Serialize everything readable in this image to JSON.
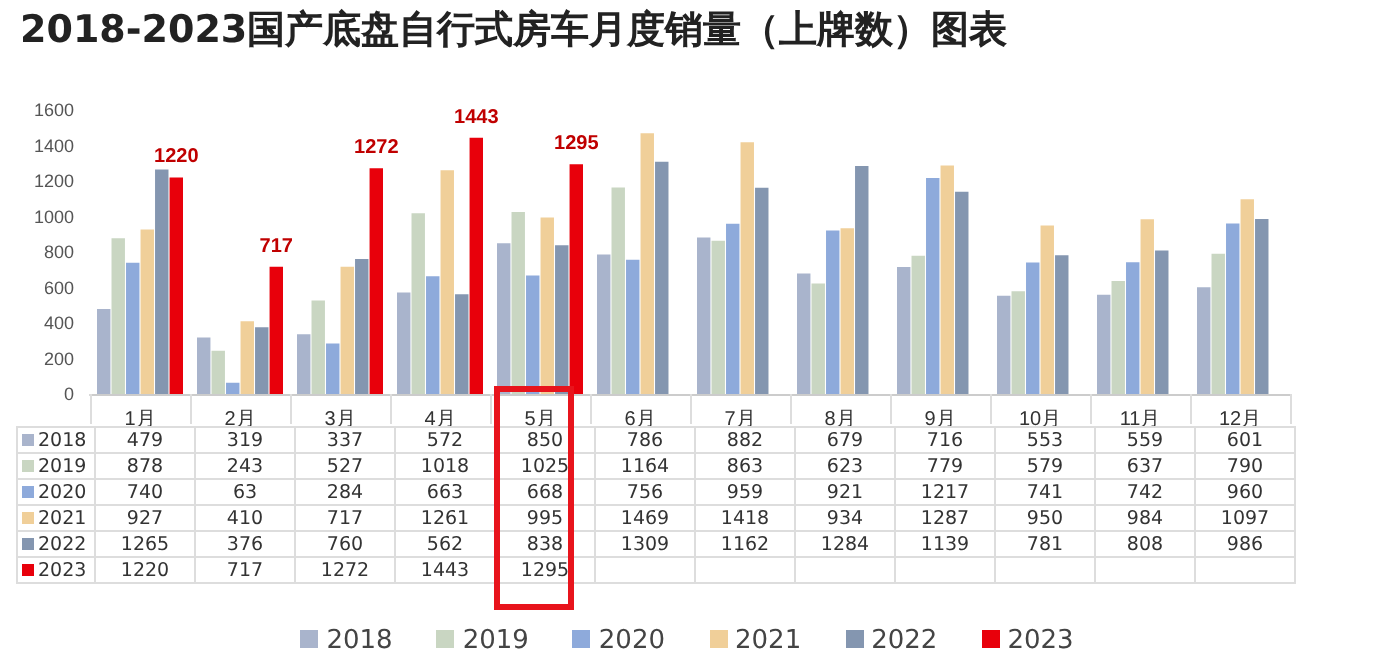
{
  "chart_data": {
    "type": "bar",
    "title": "2018-2023国产底盘自行式房车月度销量（上牌数）图表",
    "categories": [
      "1月",
      "2月",
      "3月",
      "4月",
      "5月",
      "6月",
      "7月",
      "8月",
      "9月",
      "10月",
      "11月",
      "12月"
    ],
    "ylim": [
      0,
      1600
    ],
    "yticks": [
      0,
      200,
      400,
      600,
      800,
      1000,
      1200,
      1400,
      1600
    ],
    "legend": "bottom",
    "data_labels": true,
    "series": [
      {
        "name": "2018",
        "color": "#a9b4cc",
        "values": [
          479,
          319,
          337,
          572,
          850,
          786,
          882,
          679,
          716,
          553,
          559,
          601
        ]
      },
      {
        "name": "2019",
        "color": "#c9d6c2",
        "values": [
          878,
          243,
          527,
          1018,
          1025,
          1164,
          863,
          623,
          779,
          579,
          637,
          790
        ]
      },
      {
        "name": "2020",
        "color": "#8eaadb",
        "values": [
          740,
          63,
          284,
          663,
          668,
          756,
          959,
          921,
          1217,
          741,
          742,
          960
        ]
      },
      {
        "name": "2021",
        "color": "#f0cf99",
        "values": [
          927,
          410,
          717,
          1261,
          995,
          1469,
          1418,
          934,
          1287,
          950,
          984,
          1097
        ]
      },
      {
        "name": "2022",
        "color": "#8496b0",
        "values": [
          1265,
          376,
          760,
          562,
          838,
          1309,
          1162,
          1284,
          1139,
          781,
          808,
          986
        ]
      },
      {
        "name": "2023",
        "color": "#e8000b",
        "values": [
          1220,
          717,
          1272,
          1443,
          1295,
          null,
          null,
          null,
          null,
          null,
          null,
          null
        ],
        "value_labels": [
          "1220",
          "717",
          "1272",
          "1443",
          "1295",
          null,
          null,
          null,
          null,
          null,
          null,
          null
        ]
      }
    ]
  }
}
